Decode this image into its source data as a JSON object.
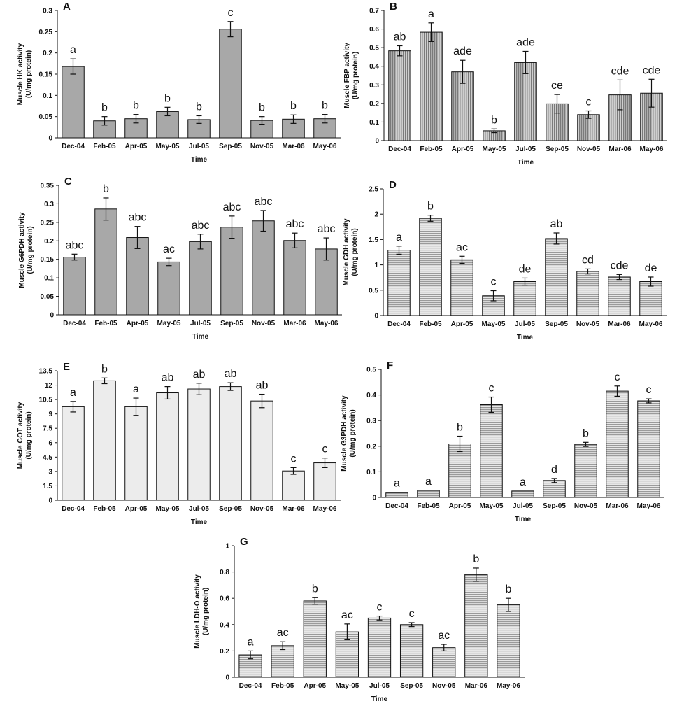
{
  "chart_data": [
    {
      "panel": "A",
      "type": "bar",
      "categories": [
        "Dec-04",
        "Feb-05",
        "Apr-05",
        "May-05",
        "Jul-05",
        "Sep-05",
        "Nov-05",
        "Mar-06",
        "May-06"
      ],
      "values": [
        0.168,
        0.04,
        0.045,
        0.062,
        0.043,
        0.256,
        0.041,
        0.044,
        0.045
      ],
      "errors": [
        0.018,
        0.01,
        0.01,
        0.01,
        0.009,
        0.018,
        0.009,
        0.01,
        0.01
      ],
      "letters": [
        "a",
        "b",
        "b",
        "b",
        "b",
        "c",
        "b",
        "b",
        "b"
      ],
      "ylabel": [
        "Muscle HK activity",
        "(U/mg protein)"
      ],
      "xlabel": "Time",
      "ylim": [
        0,
        0.3
      ],
      "yticks": [
        "0",
        "0.05",
        "0.1",
        "0.15",
        "0.2",
        "0.25",
        "0.3"
      ],
      "fill": "#a8a8a8",
      "pattern": "solid"
    },
    {
      "panel": "B",
      "type": "bar",
      "categories": [
        "Dec-04",
        "Feb-05",
        "Apr-05",
        "May-05",
        "Jul-05",
        "Sep-05",
        "Nov-05",
        "Mar-06",
        "May-06"
      ],
      "values": [
        0.483,
        0.583,
        0.37,
        0.053,
        0.42,
        0.198,
        0.14,
        0.246,
        0.255
      ],
      "errors": [
        0.027,
        0.05,
        0.062,
        0.01,
        0.06,
        0.05,
        0.02,
        0.08,
        0.075
      ],
      "letters": [
        "ab",
        "a",
        "ade",
        "b",
        "ade",
        "ce",
        "c",
        "cde",
        "cde"
      ],
      "ylabel": [
        "Muscle FBP activity",
        "(U/mg protein)"
      ],
      "xlabel": "Time",
      "ylim": [
        0,
        0.7
      ],
      "yticks": [
        "0",
        "0.1",
        "0.2",
        "0.3",
        "0.4",
        "0.5",
        "0.6",
        "0.7"
      ],
      "fill": "#a8a8a8",
      "pattern": "vertical"
    },
    {
      "panel": "C",
      "type": "bar",
      "categories": [
        "Dec-04",
        "Feb-05",
        "Apr-05",
        "May-05",
        "Jul-05",
        "Sep-05",
        "Nov-05",
        "Mar-06",
        "May-06"
      ],
      "values": [
        0.156,
        0.286,
        0.209,
        0.143,
        0.198,
        0.237,
        0.254,
        0.201,
        0.178
      ],
      "errors": [
        0.008,
        0.03,
        0.03,
        0.01,
        0.02,
        0.03,
        0.028,
        0.02,
        0.03
      ],
      "letters": [
        "abc",
        "b",
        "abc",
        "ac",
        "abc",
        "abc",
        "abc",
        "abc",
        "abc"
      ],
      "ylabel": [
        "Muscle G6PDH activity",
        "(U/mg protein)"
      ],
      "xlabel": "Time",
      "ylim": [
        0,
        0.35
      ],
      "yticks": [
        "0",
        "0.05",
        "0.1",
        "0.15",
        "0.2",
        "0.25",
        "0.3",
        "0.35"
      ],
      "fill": "#a8a8a8",
      "pattern": "solid"
    },
    {
      "panel": "D",
      "type": "bar",
      "categories": [
        "Dec-04",
        "Feb-05",
        "Apr-05",
        "May-05",
        "Jul-05",
        "Sep-05",
        "Nov-05",
        "Mar-06",
        "May-06"
      ],
      "values": [
        1.29,
        1.92,
        1.1,
        0.39,
        0.67,
        1.52,
        0.87,
        0.76,
        0.67
      ],
      "errors": [
        0.08,
        0.06,
        0.07,
        0.1,
        0.07,
        0.11,
        0.05,
        0.05,
        0.09
      ],
      "letters": [
        "a",
        "b",
        "ac",
        "c",
        "de",
        "ab",
        "cd",
        "cde",
        "de"
      ],
      "ylabel": [
        "Muscle GDH activity",
        "(U/mg protein)"
      ],
      "xlabel": "Time",
      "ylim": [
        0,
        2.5
      ],
      "yticks": [
        "0",
        "0.5",
        "1",
        "1.5",
        "2",
        "2.5"
      ],
      "fill": "#a8a8a8",
      "pattern": "horizontal"
    },
    {
      "panel": "E",
      "type": "bar",
      "categories": [
        "Dec-04",
        "Feb-05",
        "Apr-05",
        "May-05",
        "Jul-05",
        "Sep-05",
        "Nov-05",
        "Mar-06",
        "May-06"
      ],
      "values": [
        9.75,
        12.45,
        9.75,
        11.2,
        11.6,
        11.85,
        10.35,
        3.05,
        3.9
      ],
      "errors": [
        0.55,
        0.3,
        0.9,
        0.65,
        0.6,
        0.4,
        0.7,
        0.35,
        0.5
      ],
      "letters": [
        "a",
        "b",
        "a",
        "ab",
        "ab",
        "ab",
        "ab",
        "c",
        "c"
      ],
      "ylabel": [
        "Muscle GOT activity",
        "(U/mg protein)"
      ],
      "xlabel": "Time",
      "ylim": [
        0,
        13.5
      ],
      "yticks": [
        "0",
        "1.5",
        "3",
        "4.5",
        "6",
        "7.5",
        "9",
        "10.5",
        "12",
        "13.5"
      ],
      "fill": "#ececec",
      "pattern": "solid"
    },
    {
      "panel": "F",
      "type": "bar",
      "categories": [
        "Dec-04",
        "Feb-05",
        "Apr-05",
        "May-05",
        "Jul-05",
        "Sep-05",
        "Nov-05",
        "Mar-06",
        "May-06"
      ],
      "values": [
        0.02,
        0.027,
        0.209,
        0.362,
        0.025,
        0.066,
        0.207,
        0.415,
        0.377
      ],
      "errors": [
        0.0,
        0.0,
        0.03,
        0.03,
        0.0,
        0.008,
        0.008,
        0.02,
        0.008
      ],
      "letters": [
        "a",
        "a",
        "b",
        "c",
        "a",
        "d",
        "b",
        "c",
        "c"
      ],
      "ylabel": [
        "Muscle G3PDH activity",
        "(U/mg protein)"
      ],
      "xlabel": "Time",
      "ylim": [
        0,
        0.5
      ],
      "yticks": [
        "0",
        "0.1",
        "0.2",
        "0.3",
        "0.4",
        "0.5"
      ],
      "fill": "#a8a8a8",
      "pattern": "horizontal"
    },
    {
      "panel": "G",
      "type": "bar",
      "categories": [
        "Dec-04",
        "Feb-05",
        "Apr-05",
        "May-05",
        "Jul-05",
        "Sep-05",
        "Nov-05",
        "Mar-06",
        "May-06"
      ],
      "values": [
        0.17,
        0.24,
        0.58,
        0.345,
        0.45,
        0.4,
        0.225,
        0.78,
        0.55
      ],
      "errors": [
        0.03,
        0.03,
        0.025,
        0.06,
        0.015,
        0.015,
        0.025,
        0.05,
        0.05
      ],
      "letters": [
        "a",
        "ac",
        "b",
        "ac",
        "c",
        "c",
        "ac",
        "b",
        "b"
      ],
      "ylabel": [
        "Muscle LDH-O activity",
        "(U/mg protein)"
      ],
      "xlabel": "Time",
      "ylim": [
        0,
        1
      ],
      "yticks": [
        "0",
        "0.2",
        "0.4",
        "0.6",
        "0.8",
        "1"
      ],
      "fill": "#a8a8a8",
      "pattern": "horizontal"
    }
  ]
}
